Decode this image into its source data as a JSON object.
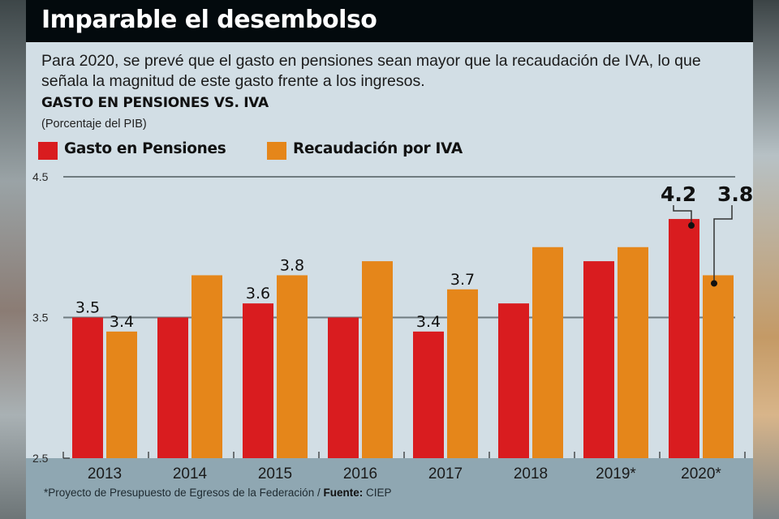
{
  "header": {
    "title": "Imparable el desembolso"
  },
  "subtitle": "Para 2020, se prevé que el gasto en pensiones sean mayor que la recaudación de IVA, lo que señala la magnitud de este gasto frente a los ingresos.",
  "colors": {
    "pensiones": "#d91c1f",
    "iva": "#e5861a",
    "header_bg": "#030a0d",
    "panel_bg": "#d2dee5",
    "footer_bg": "#8fa7b2",
    "gridline": "#6f7b80"
  },
  "footnote": {
    "note": "*Proyecto de Presupuesto de Egresos de la Federación / ",
    "source_label": "Fuente:",
    "source": " CIEP"
  },
  "chart_data": {
    "type": "bar",
    "title": "GASTO EN PENSIONES VS. IVA",
    "subtitle": "(Porcentaje del PIB)",
    "xlabel": "",
    "ylabel": "",
    "ylim": [
      2.5,
      4.5
    ],
    "yticks": [
      "2.5",
      "3.5",
      "4.5"
    ],
    "ytick_values": [
      2.5,
      3.5,
      4.5
    ],
    "grid": true,
    "legend_position": "top-left",
    "categories": [
      "2013",
      "2014",
      "2015",
      "2016",
      "2017",
      "2018",
      "2019*",
      "2020*"
    ],
    "series": [
      {
        "name": "Gasto en Pensiones",
        "color": "#d91c1f",
        "values": [
          3.5,
          3.5,
          3.6,
          3.5,
          3.4,
          3.6,
          3.9,
          4.2
        ],
        "labels": [
          "3.5",
          "",
          "3.6",
          "",
          "3.4",
          "",
          "",
          "4.2"
        ]
      },
      {
        "name": "Recaudación por IVA",
        "color": "#e5861a",
        "values": [
          3.4,
          3.8,
          3.8,
          3.9,
          3.7,
          4.0,
          4.0,
          3.8
        ],
        "labels": [
          "3.4",
          "",
          "3.8",
          "",
          "3.7",
          "",
          "",
          "3.8%"
        ]
      }
    ],
    "annotations": [
      {
        "text": "4.2",
        "series": "Gasto en Pensiones",
        "category": "2020*",
        "style": "callout"
      },
      {
        "text": "3.8%",
        "series": "Recaudación por IVA",
        "category": "2020*",
        "style": "callout"
      }
    ]
  }
}
